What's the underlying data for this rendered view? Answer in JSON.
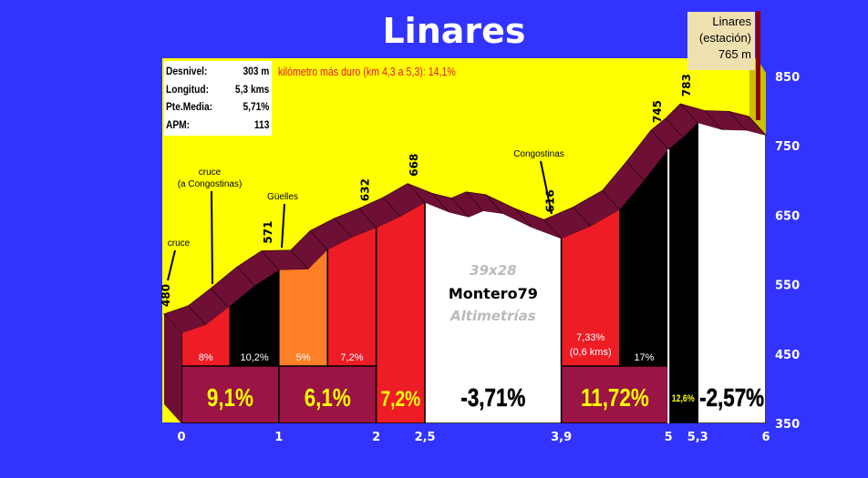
{
  "title": "Linares",
  "stats": [
    {
      "label": "Desnivel:",
      "value": "303 m"
    },
    {
      "label": "Longitud:",
      "value": "5,3 kms"
    },
    {
      "label": "Pte.Media:",
      "value": "5,71%"
    },
    {
      "label": "APM:",
      "value": "113"
    }
  ],
  "hardest_km": "kilómetro más duro (km 4,3 a 5,3):  14,1%",
  "end_label": [
    "Linares",
    "(estación)",
    "765 m"
  ],
  "watermark": {
    "size": "39x28",
    "author": "Montero79",
    "brand": "Altimetrías"
  },
  "colors": {
    "background": "#3333ff",
    "sky": "#ffff00",
    "surface": "#6e1035",
    "box": "#9a1445",
    "red": "#ee1c25",
    "orange": "#ff7f27",
    "black": "#000000",
    "white": "#ffffff",
    "big_label": "#ffff00"
  },
  "chart_data": {
    "type": "area",
    "xlabel": "",
    "ylabel": "",
    "xlim": [
      0,
      6
    ],
    "ylim": [
      350,
      850
    ],
    "yticks": [
      "350",
      "450",
      "550",
      "650",
      "750",
      "850"
    ],
    "xticks": [
      {
        "x": 0,
        "label": "0"
      },
      {
        "x": 1,
        "label": "1"
      },
      {
        "x": 2,
        "label": "2"
      },
      {
        "x": 2.5,
        "label": "2,5"
      },
      {
        "x": 3.9,
        "label": "3,9"
      },
      {
        "x": 5,
        "label": "5"
      },
      {
        "x": 5.3,
        "label": "5,3"
      },
      {
        "x": 6,
        "label": "6"
      }
    ],
    "profile": [
      [
        0,
        480
      ],
      [
        0.25,
        492
      ],
      [
        0.48,
        517
      ],
      [
        0.75,
        548
      ],
      [
        1,
        571
      ],
      [
        1.3,
        572
      ],
      [
        1.5,
        600
      ],
      [
        1.75,
        618
      ],
      [
        2,
        632
      ],
      [
        2.25,
        648
      ],
      [
        2.5,
        668
      ],
      [
        2.75,
        654
      ],
      [
        2.95,
        647
      ],
      [
        3.1,
        656
      ],
      [
        3.3,
        652
      ],
      [
        3.6,
        632
      ],
      [
        3.9,
        616
      ],
      [
        4.2,
        634
      ],
      [
        4.5,
        658
      ],
      [
        4.75,
        700
      ],
      [
        5,
        745
      ],
      [
        5.15,
        762
      ],
      [
        5.3,
        783
      ],
      [
        5.55,
        773
      ],
      [
        5.8,
        772
      ],
      [
        6,
        765
      ]
    ],
    "elevation_labels": [
      {
        "x": 0,
        "label": "480"
      },
      {
        "x": 1,
        "label": "571"
      },
      {
        "x": 2,
        "label": "632"
      },
      {
        "x": 2.5,
        "label": "668"
      },
      {
        "x": 3.9,
        "label": "616"
      },
      {
        "x": 5,
        "label": "745"
      },
      {
        "x": 5.3,
        "label": "783"
      }
    ],
    "places": [
      {
        "x": 0,
        "label": [
          "cruce"
        ]
      },
      {
        "x": 0.35,
        "label": [
          "cruce",
          "(a Congostinas)"
        ]
      },
      {
        "x": 1.05,
        "label": [
          "Güelles"
        ]
      },
      {
        "x": 3.9,
        "label": [
          "Congostinas"
        ]
      }
    ],
    "sub_segments": [
      {
        "from": 0,
        "to": 0.5,
        "grade": "8%",
        "color": "red"
      },
      {
        "from": 0.5,
        "to": 1,
        "grade": "10,2%",
        "color": "black"
      },
      {
        "from": 1,
        "to": 1.5,
        "grade": "5%",
        "color": "orange"
      },
      {
        "from": 1.5,
        "to": 2,
        "grade": "7,2%",
        "color": "red"
      },
      {
        "from": 3.9,
        "to": 4.5,
        "grade": "7,33%",
        "note": "(0,6 kms)",
        "color": "red"
      },
      {
        "from": 4.5,
        "to": 5,
        "grade": "17%",
        "color": "black"
      }
    ],
    "segments": [
      {
        "from": 0,
        "to": 1,
        "grade": "9,1%",
        "color": "box"
      },
      {
        "from": 1,
        "to": 2,
        "grade": "6,1%",
        "color": "box"
      },
      {
        "from": 2,
        "to": 2.5,
        "grade": "7,2%",
        "color": "red"
      },
      {
        "from": 2.5,
        "to": 3.9,
        "grade": "-3,71%",
        "color": "white"
      },
      {
        "from": 3.9,
        "to": 5,
        "grade": "11,72%",
        "color": "box"
      },
      {
        "from": 5,
        "to": 5.3,
        "grade": "12,6%",
        "color": "black"
      },
      {
        "from": 5.3,
        "to": 6,
        "grade": "-2,57%",
        "color": "white"
      }
    ]
  }
}
